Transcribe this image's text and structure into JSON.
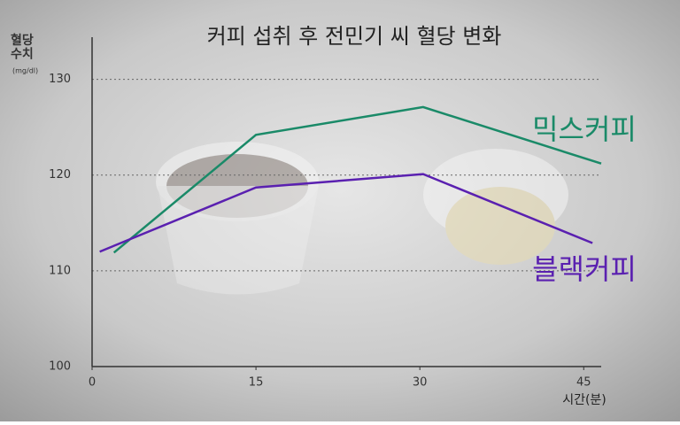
{
  "chart_data": {
    "type": "line",
    "title": "커피 섭취 후 전민기 씨 혈당 변화",
    "y_label": "혈당\n수치",
    "y_unit": "(mg/dl)",
    "x_label": "시간(분)",
    "series": [
      {
        "name": "믹스커피",
        "color": "#1a8a68",
        "x": [
          2,
          15,
          30.3,
          46.6
        ],
        "values": [
          111.9,
          124.2,
          127.1,
          121.2
        ]
      },
      {
        "name": "블랙커피",
        "color": "#5a20b0",
        "x": [
          0.7,
          15,
          30.3,
          45.8
        ],
        "values": [
          112,
          118.7,
          120.1,
          112.9
        ]
      }
    ],
    "xlim": [
      0,
      46.6
    ],
    "xticks": [
      0,
      15,
      30,
      45
    ],
    "ylim": [
      100,
      134.4
    ],
    "yticks": [
      100,
      110,
      120,
      130
    ],
    "grid": true
  }
}
